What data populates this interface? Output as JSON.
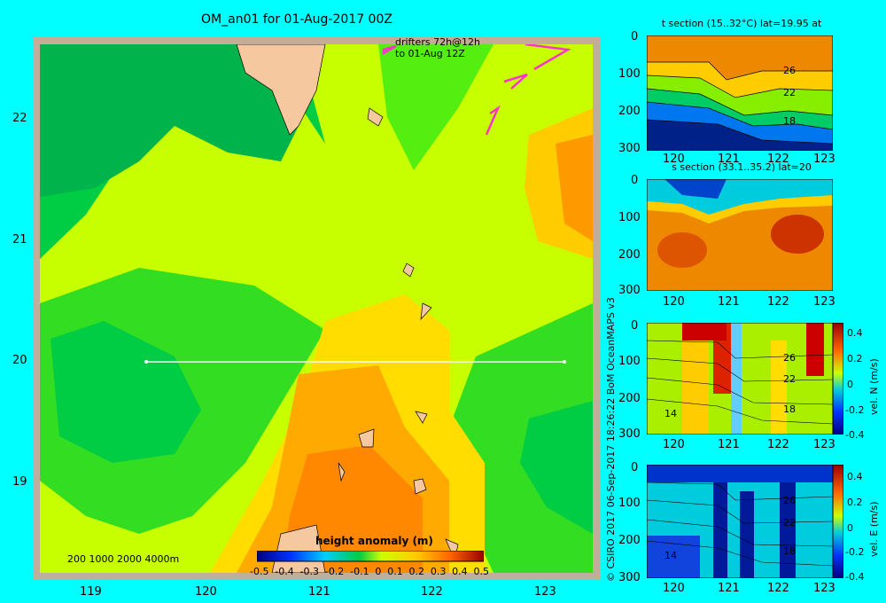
{
  "page_title": "OM_an01 for 01-Aug-2017 00Z",
  "credit": "© CSIRO 2017  06-Sep-2017 18:26:22 BoM OceanMAPS v3",
  "drifters_label_1": "drifters 72h@12h",
  "drifters_label_2": "to 01-Aug 12Z",
  "depth_key": "200  1000  2000  4000m",
  "colorbar": {
    "label": "height anomaly (m)",
    "ticks": [
      "-0.5",
      "-0.4",
      "-0.3",
      "-0.2",
      "-0.1",
      "0",
      "0.1",
      "0.2",
      "0.3",
      "0.4",
      "0.5"
    ]
  },
  "colors": {
    "background": "#00ffff",
    "land": "#f5c8a0",
    "drifter": "#ff33cc"
  },
  "chart_data": [
    {
      "type": "heatmap",
      "name": "map",
      "title": "OM_an01 for 01-Aug-2017 00Z",
      "xlabel": "",
      "ylabel": "",
      "xlim": [
        118.5,
        123.5
      ],
      "ylim": [
        18.2,
        22.7
      ],
      "x_ticks": [
        "119",
        "120",
        "121",
        "122",
        "123"
      ],
      "y_ticks": [
        "19",
        "20",
        "21",
        "22"
      ],
      "colorbar_label": "height anomaly (m)",
      "colorbar_range": [
        -0.5,
        0.5
      ],
      "section_line": {
        "lat": 20,
        "lon_range": [
          119.5,
          123.2
        ]
      }
    },
    {
      "type": "heatmap",
      "name": "t_section",
      "title": "t section (15..32°C) lat=19.95 at",
      "x_ticks": [
        "120",
        "121",
        "122",
        "123"
      ],
      "y_ticks": [
        "0",
        "100",
        "200",
        "300"
      ],
      "contour_labels": [
        "26",
        "22",
        "18"
      ],
      "ylim": [
        300,
        0
      ]
    },
    {
      "type": "heatmap",
      "name": "s_section",
      "title": "s section (33.1..35.2) lat=20",
      "x_ticks": [
        "120",
        "121",
        "122",
        "123"
      ],
      "y_ticks": [
        "0",
        "100",
        "200",
        "300"
      ],
      "ylim": [
        300,
        0
      ]
    },
    {
      "type": "heatmap",
      "name": "vel_n_section",
      "title": "",
      "x_ticks": [
        "120",
        "121",
        "122",
        "123"
      ],
      "y_ticks": [
        "0",
        "100",
        "200",
        "300"
      ],
      "contour_labels": [
        "26",
        "22",
        "18",
        "14"
      ],
      "colorbar_label": "vel. N (m/s)",
      "colorbar_ticks": [
        "0.4",
        "0.2",
        "0",
        "-0.2",
        "-0.4"
      ],
      "ylim": [
        300,
        0
      ]
    },
    {
      "type": "heatmap",
      "name": "vel_e_section",
      "title": "",
      "x_ticks": [
        "120",
        "121",
        "122",
        "123"
      ],
      "y_ticks": [
        "0",
        "100",
        "200",
        "300"
      ],
      "contour_labels": [
        "26",
        "22",
        "18",
        "14"
      ],
      "colorbar_label": "vel. E (m/s)",
      "colorbar_ticks": [
        "0.4",
        "0.2",
        "0",
        "-0.2",
        "-0.4"
      ],
      "ylim": [
        300,
        0
      ]
    }
  ]
}
